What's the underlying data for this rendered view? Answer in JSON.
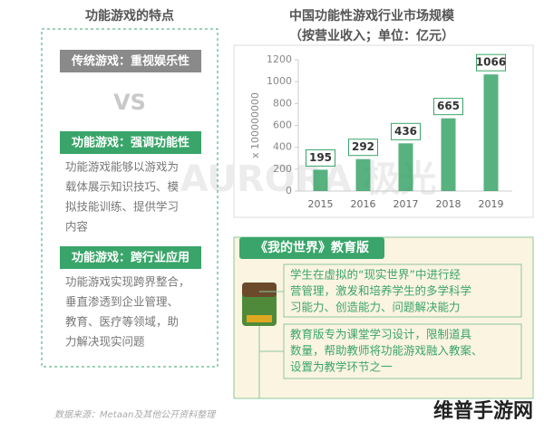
{
  "left": {
    "title": "功能游戏的特点",
    "traditional": "传统游戏：重视娱乐性",
    "vs": "VS",
    "sections": [
      {
        "label": "功能游戏：强调功能性",
        "lines": [
          "功能游戏能够以游戏为",
          "载体展示知识技巧、模",
          "拟技能训练、提供学习",
          "内容"
        ]
      },
      {
        "label": "功能游戏：跨行业应用",
        "lines": [
          "功能游戏实现跨界整合，",
          "垂直渗透到企业管理、",
          "教育、医疗等领域，助",
          "力解决现实问题"
        ]
      }
    ]
  },
  "chart_data": {
    "type": "bar",
    "title": "中国功能性游戏行业市场规模",
    "subtitle": "（按营业收入；单位：亿元）",
    "y_label": "x 100000000",
    "categories": [
      "2015",
      "2016",
      "2017",
      "2018",
      "2019"
    ],
    "values": [
      195,
      292,
      436,
      665,
      1066
    ],
    "color": "#3aa56a",
    "ylim": [
      0,
      1200
    ],
    "yticks": [
      0,
      200,
      400,
      600,
      800,
      1000,
      1200
    ],
    "grid": false
  },
  "minecraft": {
    "title": "《我的世界》教育版",
    "boxes": [
      [
        "学生在虚拟的“现实世界”中进行经",
        "营管理，激发和培养学生的多学科学",
        "习能力、创造能力、问题解决能力"
      ],
      [
        "教育版专为课堂学习设计，限制道具",
        "数量，帮助教师将功能游戏融入教案、",
        "设置为教学环节之一"
      ]
    ]
  },
  "watermark": "AURORA 极光",
  "source": "数据来源：Metaan及其他公开资料整理",
  "brand": "维普手游网"
}
